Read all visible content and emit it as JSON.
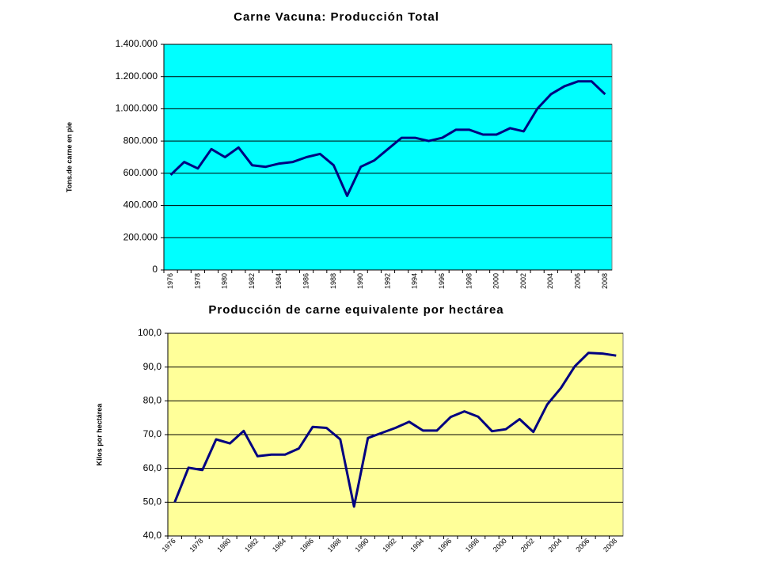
{
  "chart_data": [
    {
      "type": "line",
      "title": "Carne Vacuna: Producción Total",
      "y_label": "Tons.de carne en pie",
      "categories": [
        "1976",
        null,
        "1978",
        null,
        "1980",
        null,
        "1982",
        null,
        "1984",
        null,
        "1986",
        null,
        "1988",
        null,
        "1990",
        null,
        "1992",
        null,
        "1994",
        null,
        "1996",
        null,
        "1998",
        null,
        "2000",
        null,
        "2002",
        null,
        "2004",
        null,
        "2006",
        null,
        "2008"
      ],
      "series": [
        {
          "name": "Producción Total",
          "color": "#000080",
          "values": [
            590000,
            670000,
            630000,
            750000,
            700000,
            760000,
            650000,
            640000,
            660000,
            670000,
            700000,
            720000,
            650000,
            460000,
            640000,
            680000,
            750000,
            820000,
            820000,
            800000,
            820000,
            870000,
            870000,
            840000,
            840000,
            880000,
            860000,
            1000000,
            1090000,
            1140000,
            1170000,
            1170000,
            1090000
          ]
        }
      ],
      "ylim": [
        0,
        1400000
      ],
      "yticks": [
        0,
        {
          "value": 200000,
          "label": "200.000"
        },
        {
          "value": 400000,
          "label": "400.000"
        },
        {
          "value": 600000,
          "label": "600.000"
        },
        {
          "value": 800000,
          "label": "800.000"
        },
        {
          "value": 1000000,
          "label": "1.000.000"
        },
        {
          "value": 1200000,
          "label": "1.200.000"
        },
        {
          "value": 1400000,
          "label": "1.400.000"
        }
      ],
      "grid": true,
      "background": "#00ffff"
    },
    {
      "type": "line",
      "title": "Producción de carne equivalente por hectárea",
      "y_label": "Kilos por hectárea",
      "categories": [
        "1976",
        null,
        "1978",
        null,
        "1980",
        null,
        "1982",
        null,
        "1984",
        null,
        "1986",
        null,
        "1988",
        null,
        "1990",
        null,
        "1992",
        null,
        "1994",
        null,
        "1996",
        null,
        "1998",
        null,
        "2000",
        null,
        "2002",
        null,
        "2004",
        null,
        "2006",
        null,
        "2008"
      ],
      "series": [
        {
          "name": "Kilos por hectárea",
          "color": "#000080",
          "values": [
            50.0,
            60.2,
            59.5,
            68.6,
            67.4,
            71.1,
            63.6,
            64.1,
            64.1,
            65.9,
            72.3,
            72.0,
            68.6,
            48.7,
            69.0,
            70.5,
            72.0,
            73.8,
            71.2,
            71.2,
            75.2,
            76.9,
            75.3,
            71.0,
            71.6,
            74.6,
            70.8,
            78.9,
            83.8,
            90.2,
            94.2,
            94.0,
            93.4
          ]
        }
      ],
      "ylim": [
        40,
        100
      ],
      "yticks": [
        {
          "value": 40,
          "label": "40,0"
        },
        {
          "value": 50,
          "label": "50,0"
        },
        {
          "value": 60,
          "label": "60,0"
        },
        {
          "value": 70,
          "label": "70,0"
        },
        {
          "value": 80,
          "label": "80,0"
        },
        {
          "value": 90,
          "label": "90,0"
        },
        {
          "value": 100,
          "label": "100,0"
        }
      ],
      "grid": true,
      "background": "#ffff99"
    }
  ]
}
